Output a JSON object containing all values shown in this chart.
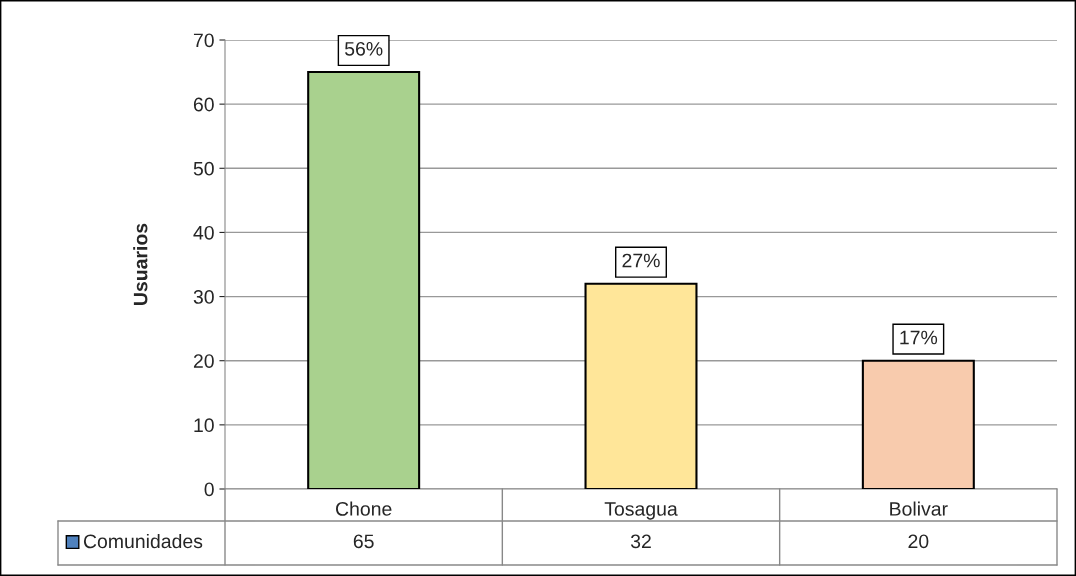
{
  "chart_data": {
    "type": "bar",
    "ylabel": "Usuarios",
    "categories": [
      "Chone",
      "Tosagua",
      "Bolivar"
    ],
    "series": [
      {
        "name": "Comunidades",
        "color": "#4f81bd",
        "colors": [
          "#a9d18e",
          "#ffe699",
          "#f8cbad"
        ],
        "values": [
          65,
          32,
          20
        ],
        "value_labels": [
          "65",
          "32",
          "20"
        ]
      }
    ],
    "annotations": [
      {
        "text": "56%",
        "x": "Chone",
        "y": 65
      },
      {
        "text": "27%",
        "x": "Tosagua",
        "y": 32
      },
      {
        "text": "17%",
        "x": "Bolivar",
        "y": 20
      }
    ],
    "ylim": [
      0,
      70
    ],
    "yticks": [
      0,
      10,
      20,
      30,
      40,
      50,
      60,
      70
    ],
    "grid": "y",
    "legend": "bottom"
  }
}
